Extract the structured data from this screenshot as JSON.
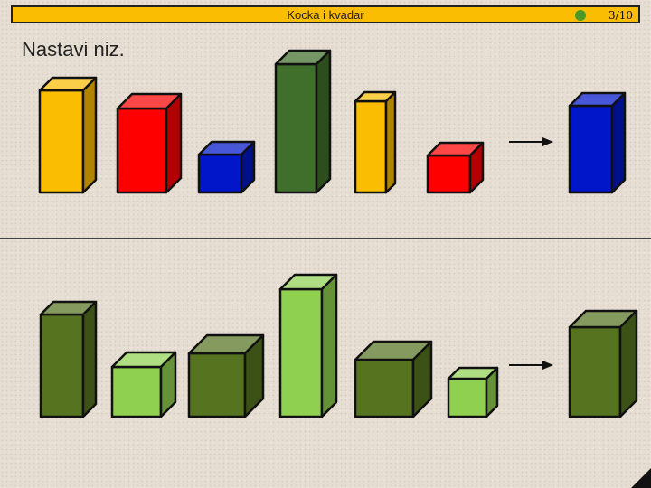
{
  "header": {
    "title": "Kocka i kvadar",
    "page_indicator": "3/10",
    "accent_color": "#fbbd02",
    "status_dot_color": "#4a9a2a"
  },
  "instruction": "Nastavi niz.",
  "colors": {
    "yellow": "#fbbd02",
    "red": "#fe0000",
    "blue": "#0016c8",
    "dark_green": "#3f6f2a",
    "olive_green": "#56731f",
    "light_green": "#90d050"
  },
  "sequences": [
    {
      "name": "top-sequence",
      "items": [
        {
          "shape": "cuboid",
          "color": "yellow"
        },
        {
          "shape": "cuboid",
          "color": "red"
        },
        {
          "shape": "cube",
          "color": "blue"
        },
        {
          "shape": "cuboid",
          "color": "dark_green"
        },
        {
          "shape": "cuboid",
          "color": "yellow"
        },
        {
          "shape": "cube",
          "color": "red"
        }
      ],
      "answer": {
        "shape": "cuboid",
        "color": "blue"
      }
    },
    {
      "name": "bottom-sequence",
      "items": [
        {
          "shape": "cuboid",
          "color": "olive_green"
        },
        {
          "shape": "cube",
          "color": "light_green"
        },
        {
          "shape": "cube",
          "color": "olive_green"
        },
        {
          "shape": "cuboid",
          "color": "light_green"
        },
        {
          "shape": "cube",
          "color": "olive_green"
        },
        {
          "shape": "cube",
          "color": "light_green"
        }
      ],
      "answer": {
        "shape": "cuboid",
        "color": "olive_green"
      }
    }
  ]
}
